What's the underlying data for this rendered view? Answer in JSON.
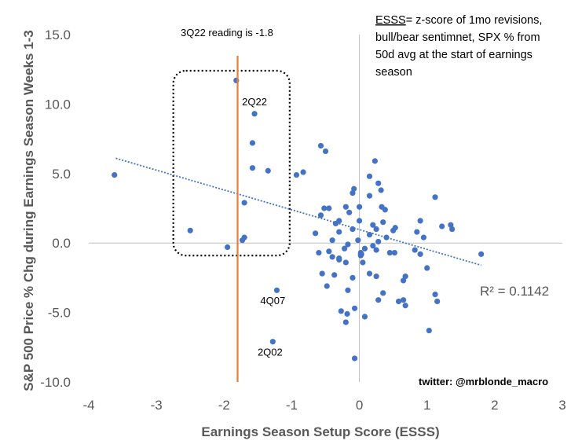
{
  "chart_data": {
    "type": "scatter",
    "xlabel": "Earnings Season Setup Score (ESSS)",
    "ylabel": "S&P 500 Price % Chg during Earnings Season Weeks 1-3",
    "xlim": [
      -4,
      3
    ],
    "ylim": [
      -10,
      15
    ],
    "x_ticks": [
      "-4",
      "-3",
      "-2",
      "-1",
      "0",
      "1",
      "2",
      "3"
    ],
    "y_ticks": [
      "15.0",
      "10.0",
      "5.0",
      "0.0",
      "-5.0",
      "-10.0"
    ],
    "marker_color": "#4472C4",
    "trendline": {
      "style": "dotted",
      "color": "#4472C4",
      "x": [
        -3.6,
        1.8
      ],
      "y": [
        6.1,
        -1.6
      ]
    },
    "r_squared_label": "R² = 0.1142",
    "vertical_line": {
      "x": -1.8,
      "color": "#ED7D31"
    },
    "vertical_line_label": "3Q22 reading is -1.8",
    "point_labels": [
      {
        "text": "2Q22",
        "x": -1.55,
        "y": 9.9
      },
      {
        "text": "4Q07",
        "x": -1.28,
        "y": -4.4
      },
      {
        "text": "2Q02",
        "x": -1.32,
        "y": -8.1
      }
    ],
    "highlight_box": {
      "x_range": [
        -2.75,
        -1.03
      ],
      "y_range": [
        -0.9,
        12.4
      ],
      "style": "dotted"
    },
    "note": {
      "lines": [
        "ESSS= z-score of 1mo revisions,",
        "bull/bear sentimnet, SPX % from",
        "50d avg at the start of earnings",
        "season"
      ],
      "underlined_word": "ESSS"
    },
    "credit": "twitter: @mrblonde_macro",
    "points": [
      [
        -3.62,
        4.9
      ],
      [
        -2.5,
        0.9
      ],
      [
        -1.95,
        -0.3
      ],
      [
        -1.82,
        11.7
      ],
      [
        -1.55,
        9.3
      ],
      [
        -1.58,
        7.2
      ],
      [
        -1.58,
        5.4
      ],
      [
        -1.7,
        2.9
      ],
      [
        -1.7,
        0.4
      ],
      [
        -1.73,
        0.2
      ],
      [
        -1.35,
        5.2
      ],
      [
        -1.22,
        -3.4
      ],
      [
        -1.28,
        -7.1
      ],
      [
        -0.93,
        4.9
      ],
      [
        -0.83,
        5.1
      ],
      [
        -0.57,
        7.0
      ],
      [
        -0.5,
        6.6
      ],
      [
        -0.52,
        2.5
      ],
      [
        -0.57,
        2.0
      ],
      [
        -0.45,
        2.5
      ],
      [
        -0.6,
        -0.7
      ],
      [
        -0.45,
        -0.6
      ],
      [
        -0.65,
        0.7
      ],
      [
        -0.35,
        1.4
      ],
      [
        -0.3,
        1.6
      ],
      [
        -0.2,
        2.6
      ],
      [
        -0.15,
        2.2
      ],
      [
        -0.1,
        1.0
      ],
      [
        -0.08,
        3.9
      ],
      [
        -0.1,
        3.6
      ],
      [
        0.0,
        2.6
      ],
      [
        0.15,
        4.8
      ],
      [
        0.23,
        5.9
      ],
      [
        0.28,
        4.3
      ],
      [
        0.32,
        3.8
      ],
      [
        0.33,
        2.6
      ],
      [
        0.38,
        2.4
      ],
      [
        0.15,
        3.4
      ],
      [
        0.0,
        1.6
      ],
      [
        0.2,
        1.3
      ],
      [
        0.25,
        1.0
      ],
      [
        0.35,
        1.5
      ],
      [
        0.4,
        0.4
      ],
      [
        0.5,
        0.9
      ],
      [
        0.53,
        1.1
      ],
      [
        0.15,
        0.6
      ],
      [
        0.2,
        -0.2
      ],
      [
        0.25,
        -0.5
      ],
      [
        0.28,
        0.1
      ],
      [
        0.08,
        -0.4
      ],
      [
        0.03,
        -0.8
      ],
      [
        -0.17,
        -0.1
      ],
      [
        -0.22,
        -0.4
      ],
      [
        -0.4,
        0.2
      ],
      [
        -0.3,
        0.8
      ],
      [
        -0.02,
        0.2
      ],
      [
        0.45,
        -0.7
      ],
      [
        0.52,
        -0.7
      ],
      [
        0.02,
        -0.7
      ],
      [
        0.02,
        -0.9
      ],
      [
        -0.55,
        -2.2
      ],
      [
        -0.37,
        -2.3
      ],
      [
        -0.4,
        -1.0
      ],
      [
        -0.3,
        -1.1
      ],
      [
        -0.3,
        -1.2
      ],
      [
        -0.2,
        -1.4
      ],
      [
        -0.1,
        -2.5
      ],
      [
        -0.48,
        -3.1
      ],
      [
        -0.17,
        -3.4
      ],
      [
        0.02,
        -0.8
      ],
      [
        0.15,
        -2.2
      ],
      [
        0.25,
        -2.4
      ],
      [
        0.35,
        -3.6
      ],
      [
        0.28,
        -4.1
      ],
      [
        0.05,
        -1.4
      ],
      [
        -0.27,
        -4.9
      ],
      [
        -0.18,
        -5.1
      ],
      [
        -0.2,
        -5.7
      ],
      [
        -0.07,
        -4.7
      ],
      [
        0.08,
        -5.3
      ],
      [
        -0.07,
        -8.3
      ],
      [
        0.58,
        -4.2
      ],
      [
        0.68,
        -2.4
      ],
      [
        0.65,
        -2.7
      ],
      [
        0.65,
        -4.1
      ],
      [
        0.68,
        -4.5
      ],
      [
        0.82,
        -0.5
      ],
      [
        0.9,
        -0.8
      ],
      [
        0.95,
        0.4
      ],
      [
        1.0,
        -1.8
      ],
      [
        1.03,
        -6.3
      ],
      [
        1.12,
        -3.7
      ],
      [
        1.15,
        -4.2
      ],
      [
        1.12,
        3.3
      ],
      [
        1.22,
        1.2
      ],
      [
        1.35,
        1.3
      ],
      [
        1.37,
        1.0
      ],
      [
        0.9,
        1.6
      ],
      [
        0.85,
        0.8
      ],
      [
        1.8,
        -0.8
      ]
    ]
  }
}
